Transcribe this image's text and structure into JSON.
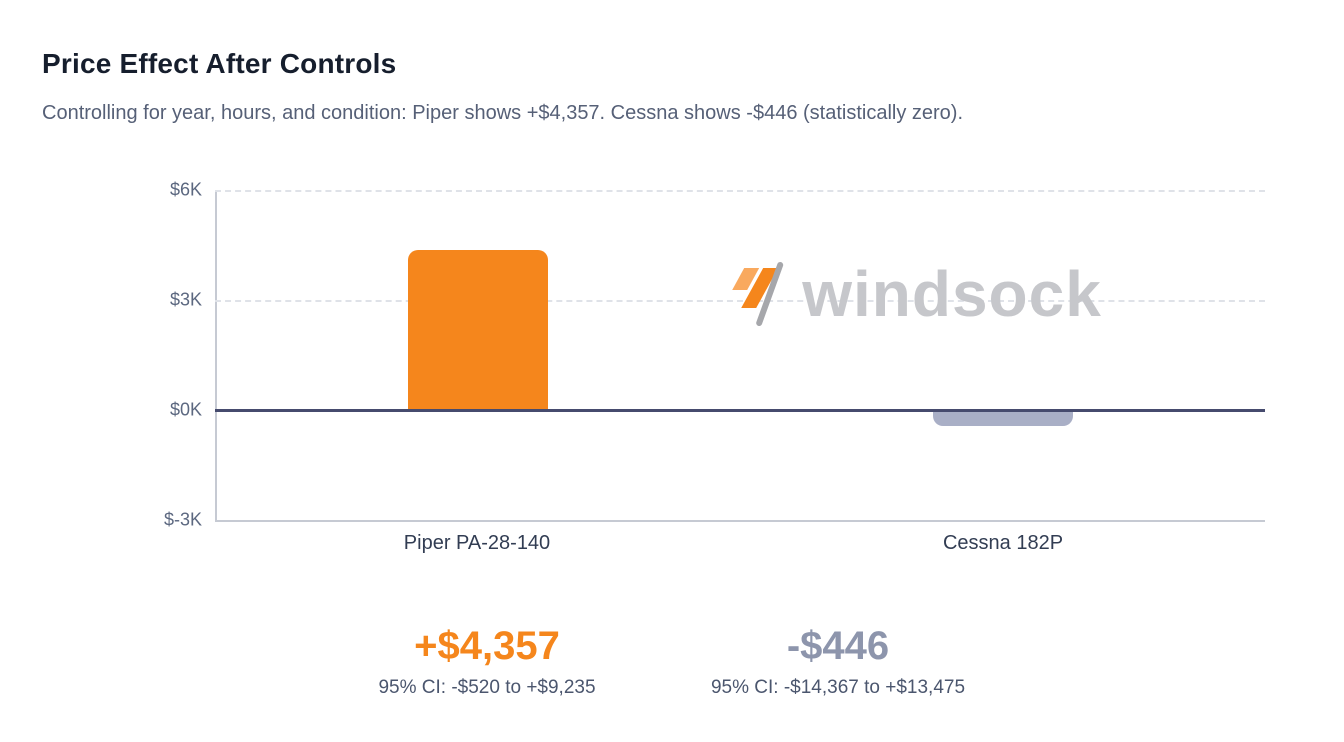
{
  "header": {
    "title": "Price Effect After Controls",
    "subtitle": "Controlling for year, hours, and condition: Piper shows +$4,357. Cessna shows -$446 (statistically zero)."
  },
  "watermark": {
    "text": "windsock"
  },
  "chart_data": {
    "type": "bar",
    "title": "Price Effect After Controls",
    "categories": [
      "Piper PA-28-140",
      "Cessna 182P"
    ],
    "values": [
      4357,
      -446
    ],
    "value_labels": [
      "+$4,357",
      "-$446"
    ],
    "ci_labels": [
      "95% CI: -$520 to +$9,235",
      "95% CI: -$14,367 to +$13,475"
    ],
    "bar_colors": [
      "#F5861C",
      "#A9AFC6"
    ],
    "ylim": [
      -3000,
      6000
    ],
    "yticks": [
      6000,
      3000,
      0,
      -3000
    ],
    "ytick_labels": [
      "$6K",
      "$3K",
      "$0K",
      "$-3K"
    ],
    "xlabel": "",
    "ylabel": "",
    "grid": "horizontal dashed at 6K and 3K, solid dark baseline at 0, solid light axis at -3K",
    "legend": "none"
  },
  "stats": [
    {
      "value": "+$4,357",
      "ci": "95% CI: -$520 to +$9,235",
      "color": "#F5861C"
    },
    {
      "value": "-$446",
      "ci": "95% CI: -$14,367 to +$13,475",
      "color": "#8D95AC"
    }
  ]
}
